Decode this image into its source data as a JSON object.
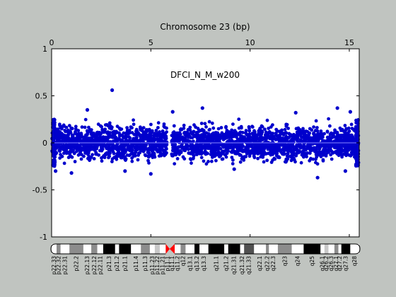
{
  "chart_data": {
    "type": "scatter",
    "title": "Chromosome 23 (bp)",
    "annotation": "DFCI_N_M_w200",
    "x_ticks": [
      0,
      5,
      10,
      15
    ],
    "x_tick_labels": [
      "0",
      "5",
      "10",
      "15"
    ],
    "xlim": [
      0,
      15.5
    ],
    "y_ticks": [
      1,
      0.5,
      0,
      -0.5,
      -1
    ],
    "y_tick_labels": [
      "1",
      "0.5",
      "0",
      "-0.5",
      "-1"
    ],
    "ylim": [
      -1,
      1
    ],
    "grid": false,
    "point_color": "#0000cc",
    "baseline_color": "#8888ff",
    "series": [
      {
        "values_summary": "dense band of log-ratio points roughly between -0.28 and +0.3 across the chromosome, gap near x≈6.0",
        "outliers": [
          {
            "x": 3.05,
            "y": 0.56
          },
          {
            "x": 7.6,
            "y": 0.37
          },
          {
            "x": 6.1,
            "y": 0.33
          },
          {
            "x": 15.05,
            "y": 0.33
          },
          {
            "x": 14.4,
            "y": 0.37
          },
          {
            "x": 1.8,
            "y": 0.35
          },
          {
            "x": 12.3,
            "y": 0.32
          },
          {
            "x": 5.0,
            "y": -0.33
          },
          {
            "x": 1.0,
            "y": -0.32
          },
          {
            "x": 13.4,
            "y": -0.37
          },
          {
            "x": 0.2,
            "y": -0.3
          },
          {
            "x": 3.7,
            "y": -0.3
          },
          {
            "x": 9.2,
            "y": -0.28
          },
          {
            "x": 14.8,
            "y": -0.3
          }
        ]
      }
    ],
    "cytobands": [
      {
        "name": "p22.33",
        "start": 0.0,
        "end": 0.25,
        "stain": "white"
      },
      {
        "name": "p22.32",
        "start": 0.25,
        "end": 0.45,
        "stain": "gray50"
      },
      {
        "name": "p22.31",
        "start": 0.45,
        "end": 0.9,
        "stain": "white"
      },
      {
        "name": "p22.2",
        "start": 0.9,
        "end": 1.6,
        "stain": "gray50"
      },
      {
        "name": "p22.13",
        "start": 1.6,
        "end": 2.0,
        "stain": "white"
      },
      {
        "name": "p22.12",
        "start": 2.0,
        "end": 2.3,
        "stain": "gray50"
      },
      {
        "name": "p22.11",
        "start": 2.3,
        "end": 2.6,
        "stain": "white"
      },
      {
        "name": "p21.3",
        "start": 2.6,
        "end": 3.2,
        "stain": "black"
      },
      {
        "name": "p21.2",
        "start": 3.2,
        "end": 3.4,
        "stain": "white"
      },
      {
        "name": "p21.1",
        "start": 3.4,
        "end": 4.0,
        "stain": "black"
      },
      {
        "name": "p11.4",
        "start": 4.0,
        "end": 4.5,
        "stain": "white"
      },
      {
        "name": "p11.3",
        "start": 4.5,
        "end": 4.95,
        "stain": "gray50"
      },
      {
        "name": "p11.23",
        "start": 4.95,
        "end": 5.2,
        "stain": "white"
      },
      {
        "name": "p11.22",
        "start": 5.2,
        "end": 5.45,
        "stain": "gray25"
      },
      {
        "name": "p11.21",
        "start": 5.45,
        "end": 5.75,
        "stain": "white"
      },
      {
        "name": "p11.1",
        "start": 5.75,
        "end": 5.95,
        "stain": "acen"
      },
      {
        "name": "q11.1",
        "start": 5.95,
        "end": 6.2,
        "stain": "acen"
      },
      {
        "name": "q11.2",
        "start": 6.2,
        "end": 6.5,
        "stain": "white"
      },
      {
        "name": "q12",
        "start": 6.5,
        "end": 6.75,
        "stain": "gray50"
      },
      {
        "name": "q13.1",
        "start": 6.75,
        "end": 7.2,
        "stain": "white"
      },
      {
        "name": "q13.2",
        "start": 7.2,
        "end": 7.45,
        "stain": "black"
      },
      {
        "name": "q13.3",
        "start": 7.45,
        "end": 7.9,
        "stain": "white"
      },
      {
        "name": "q21.1",
        "start": 7.9,
        "end": 8.7,
        "stain": "black"
      },
      {
        "name": "q21.2",
        "start": 8.7,
        "end": 8.9,
        "stain": "white"
      },
      {
        "name": "q21.31",
        "start": 8.9,
        "end": 9.5,
        "stain": "black"
      },
      {
        "name": "q21.32",
        "start": 9.5,
        "end": 9.7,
        "stain": "white"
      },
      {
        "name": "q21.33",
        "start": 9.7,
        "end": 10.2,
        "stain": "gray75"
      },
      {
        "name": "q22.1",
        "start": 10.2,
        "end": 10.8,
        "stain": "white"
      },
      {
        "name": "q22.2",
        "start": 10.8,
        "end": 10.95,
        "stain": "gray50"
      },
      {
        "name": "q22.3",
        "start": 10.95,
        "end": 11.4,
        "stain": "white"
      },
      {
        "name": "q23",
        "start": 11.4,
        "end": 12.1,
        "stain": "gray50"
      },
      {
        "name": "q24",
        "start": 12.1,
        "end": 12.7,
        "stain": "white"
      },
      {
        "name": "q25",
        "start": 12.7,
        "end": 13.55,
        "stain": "black"
      },
      {
        "name": "q26.1",
        "start": 13.55,
        "end": 13.75,
        "stain": "white"
      },
      {
        "name": "q26.2",
        "start": 13.75,
        "end": 13.95,
        "stain": "gray25"
      },
      {
        "name": "q26.3",
        "start": 13.95,
        "end": 14.25,
        "stain": "white"
      },
      {
        "name": "q27.1",
        "start": 14.25,
        "end": 14.45,
        "stain": "gray50"
      },
      {
        "name": "q27.2",
        "start": 14.45,
        "end": 14.6,
        "stain": "white"
      },
      {
        "name": "q27.3",
        "start": 14.6,
        "end": 15.05,
        "stain": "black"
      },
      {
        "name": "q28",
        "start": 15.05,
        "end": 15.5,
        "stain": "white"
      }
    ],
    "stain_colors": {
      "white": "#ffffff",
      "gray25": "#c8c8c8",
      "gray50": "#8c8c8c",
      "gray75": "#505050",
      "black": "#000000",
      "acen": "#ff0000"
    }
  }
}
